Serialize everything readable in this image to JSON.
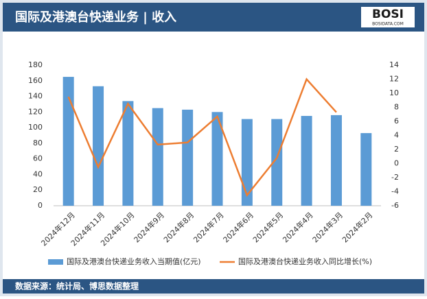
{
  "header": {
    "title": "国际及港澳台快递业务 | 收入",
    "logo": "BOSI",
    "logo_sub": "BOSIDATA.COM"
  },
  "chart_data": {
    "type": "combo",
    "categories": [
      "2024年12月",
      "2024年11月",
      "2024年10月",
      "2024年9月",
      "2024年8月",
      "2024年7月",
      "2024年6月",
      "2024年5月",
      "2024年4月",
      "2024年3月",
      "2024年2月"
    ],
    "series": [
      {
        "name": "国际及港澳台快递业务收入当期值(亿元)",
        "type": "bar",
        "color": "#5b9bd5",
        "values": [
          165,
          153,
          134,
          125,
          123,
          120,
          111,
          111,
          115,
          116,
          93
        ]
      },
      {
        "name": "国际及港澳台快递业务收入同比增长(%)",
        "type": "line",
        "axis": "y2",
        "color": "#ed7d31",
        "values": [
          9.5,
          -0.5,
          8.5,
          2.7,
          3.0,
          6.7,
          -4.5,
          0.8,
          12.0,
          7.3,
          null
        ]
      }
    ],
    "ylim": [
      0,
      180
    ],
    "yticks": [
      0,
      20,
      40,
      60,
      80,
      100,
      120,
      140,
      160,
      180
    ],
    "y2lim": [
      -6,
      14
    ],
    "y2ticks": [
      -6,
      -4,
      -2,
      0,
      2,
      4,
      6,
      8,
      10,
      12,
      14
    ],
    "grid": false
  },
  "footer": {
    "source": "数据来源：统计局、博思数据整理"
  }
}
